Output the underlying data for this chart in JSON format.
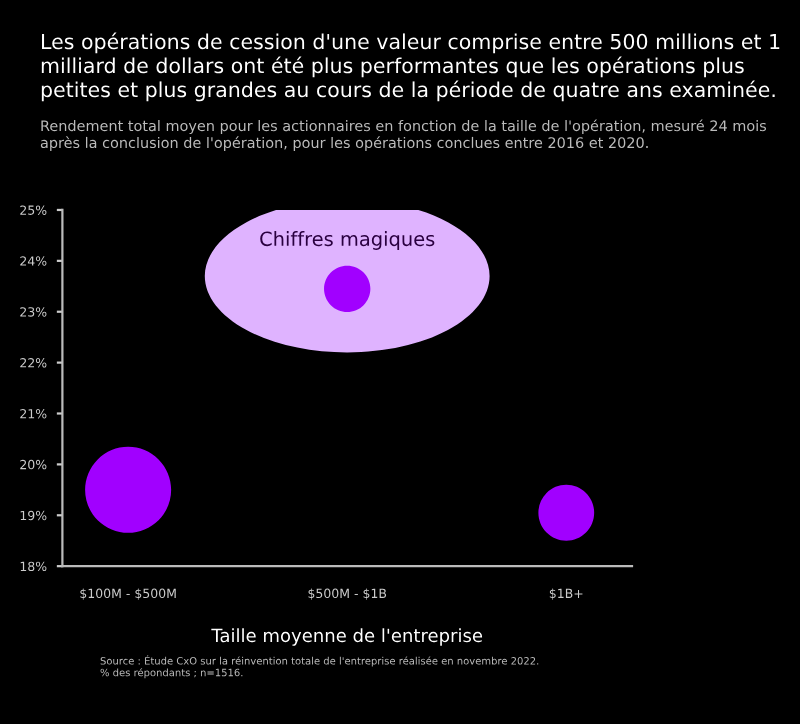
{
  "chart_data": {
    "type": "bubble",
    "title": "Les opérations de cession d'une valeur comprise entre 500 millions et 1 milliard de dollars ont été plus performantes que les opérations plus petites et plus grandes au cours de la période de quatre ans examinée.",
    "subtitle": "Rendement total moyen pour les actionnaires en fonction de la taille de l'opération, mesuré 24 mois après la conclusion de l'opération, pour les opérations conclues entre 2016 et 2020.",
    "xlabel": "Taille moyenne de l'entreprise",
    "categories": [
      "$100M - $500M",
      "$500M - $1B",
      "$1B+"
    ],
    "values": [
      19.5,
      23.45,
      19.05
    ],
    "sizes": [
      1,
      0.29,
      0.42
    ],
    "color": "#a100ff",
    "ylim": [
      18,
      25
    ],
    "yticks": [
      {
        "value": 18,
        "label": "18%"
      },
      {
        "value": 19,
        "label": "19%"
      },
      {
        "value": 20,
        "label": "20%"
      },
      {
        "value": 21,
        "label": "21%"
      },
      {
        "value": 22,
        "label": "22%"
      },
      {
        "value": 23,
        "label": "23%"
      },
      {
        "value": 24,
        "label": "24%"
      },
      {
        "value": 25,
        "label": "25%"
      }
    ],
    "grid": false,
    "annotations": [
      "Chiffres magiques",
      "Source : Étude CxO sur la réinvention totale de l'entreprise réalisée en novembre 2022.\n% des répondants ; n=1516."
    ]
  }
}
